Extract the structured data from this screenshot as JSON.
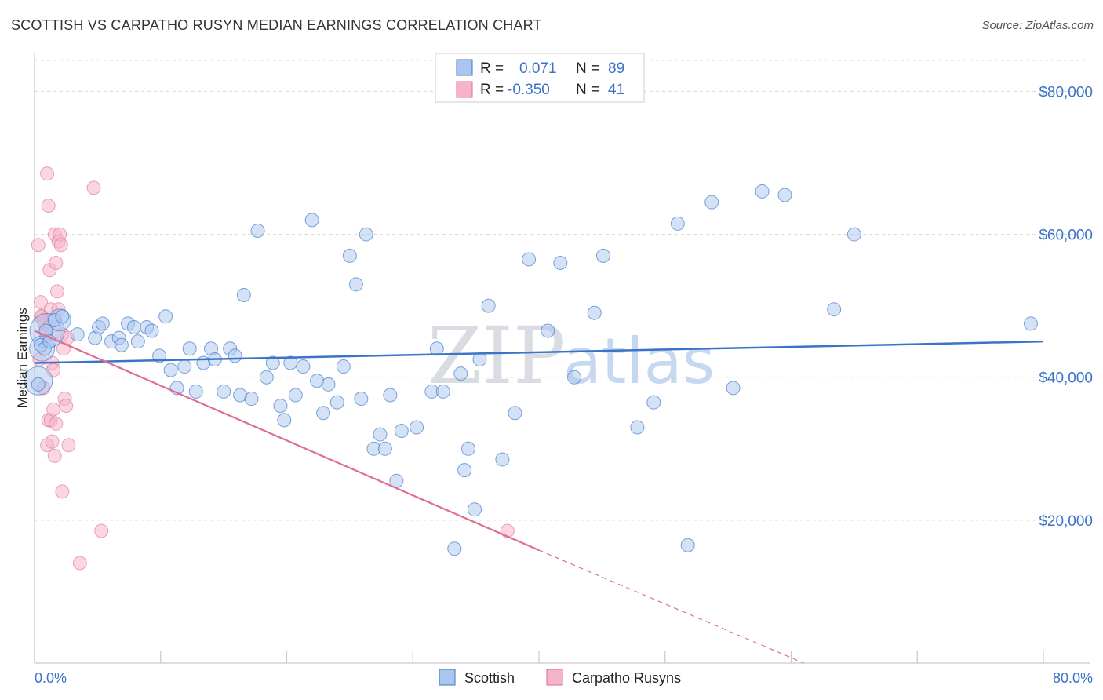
{
  "header": {
    "title": "SCOTTISH VS CARPATHO RUSYN MEDIAN EARNINGS CORRELATION CHART",
    "source": "Source: ZipAtlas.com"
  },
  "colors": {
    "blue": "#3b73c8",
    "blue_fill": "#aac6ee",
    "pink": "#e06b93",
    "pink_fill": "#f5b4c9",
    "grid": "#d8d8d8"
  },
  "legend_top": {
    "rows": [
      {
        "r_label": "R =",
        "r_value": "0.071",
        "n_label": "N =",
        "n_value": "89"
      },
      {
        "r_label": "R =",
        "r_value": "-0.350",
        "n_label": "N =",
        "n_value": "41"
      }
    ]
  },
  "watermark": {
    "zip": "ZIP",
    "atlas": "atlas"
  },
  "chart_data": {
    "type": "scatter",
    "title": "SCOTTISH VS CARPATHO RUSYN MEDIAN EARNINGS CORRELATION CHART",
    "ylabel": "Median Earnings",
    "xlabel": "",
    "xlim": [
      0,
      80
    ],
    "ylim": [
      0,
      84000
    ],
    "x_tick_labels": [
      "0.0%",
      "80.0%"
    ],
    "y_ticks": [
      {
        "value": 20000,
        "label": "$20,000"
      },
      {
        "value": 40000,
        "label": "$40,000"
      },
      {
        "value": 60000,
        "label": "$60,000"
      },
      {
        "value": 80000,
        "label": "$80,000"
      }
    ],
    "series": [
      {
        "name": "Scottish",
        "color": "blue",
        "points": [
          [
            0.3,
            39000
          ],
          [
            0.5,
            44500
          ],
          [
            0.9,
            46500
          ],
          [
            1.6,
            48000
          ],
          [
            2.2,
            48500
          ],
          [
            3.4,
            46000
          ],
          [
            4.8,
            45500
          ],
          [
            5.1,
            47000
          ],
          [
            5.4,
            47500
          ],
          [
            6.1,
            45000
          ],
          [
            6.7,
            45500
          ],
          [
            6.9,
            44500
          ],
          [
            7.4,
            47500
          ],
          [
            7.9,
            47000
          ],
          [
            8.2,
            45000
          ],
          [
            8.9,
            47000
          ],
          [
            9.3,
            46500
          ],
          [
            9.9,
            43000
          ],
          [
            10.4,
            48500
          ],
          [
            10.8,
            41000
          ],
          [
            11.3,
            38500
          ],
          [
            11.9,
            41500
          ],
          [
            12.3,
            44000
          ],
          [
            12.8,
            38000
          ],
          [
            13.4,
            42000
          ],
          [
            14.0,
            44000
          ],
          [
            14.3,
            42500
          ],
          [
            15.0,
            38000
          ],
          [
            15.5,
            44000
          ],
          [
            15.9,
            43000
          ],
          [
            16.3,
            37500
          ],
          [
            16.6,
            51500
          ],
          [
            17.2,
            37000
          ],
          [
            17.7,
            60500
          ],
          [
            18.4,
            40000
          ],
          [
            18.9,
            42000
          ],
          [
            19.5,
            36000
          ],
          [
            19.8,
            34000
          ],
          [
            20.3,
            42000
          ],
          [
            20.7,
            37500
          ],
          [
            21.3,
            41500
          ],
          [
            22.0,
            62000
          ],
          [
            22.4,
            39500
          ],
          [
            22.9,
            35000
          ],
          [
            23.3,
            39000
          ],
          [
            24.0,
            36500
          ],
          [
            24.5,
            41500
          ],
          [
            25.0,
            57000
          ],
          [
            25.5,
            53000
          ],
          [
            25.9,
            37000
          ],
          [
            26.3,
            60000
          ],
          [
            26.9,
            30000
          ],
          [
            27.4,
            32000
          ],
          [
            27.8,
            30000
          ],
          [
            28.2,
            37500
          ],
          [
            28.7,
            25500
          ],
          [
            29.1,
            32500
          ],
          [
            30.3,
            33000
          ],
          [
            31.5,
            38000
          ],
          [
            31.9,
            44000
          ],
          [
            32.4,
            38000
          ],
          [
            33.3,
            16000
          ],
          [
            33.8,
            40500
          ],
          [
            34.1,
            27000
          ],
          [
            34.4,
            30000
          ],
          [
            34.9,
            21500
          ],
          [
            35.3,
            42500
          ],
          [
            36.0,
            50000
          ],
          [
            37.1,
            28500
          ],
          [
            38.1,
            35000
          ],
          [
            39.2,
            56500
          ],
          [
            40.7,
            46500
          ],
          [
            41.7,
            56000
          ],
          [
            42.8,
            40000
          ],
          [
            44.4,
            49000
          ],
          [
            45.1,
            57000
          ],
          [
            47.8,
            33000
          ],
          [
            49.1,
            36500
          ],
          [
            51.0,
            61500
          ],
          [
            51.8,
            16500
          ],
          [
            53.7,
            64500
          ],
          [
            55.4,
            38500
          ],
          [
            57.7,
            66000
          ],
          [
            59.5,
            65500
          ],
          [
            63.4,
            49500
          ],
          [
            65.0,
            60000
          ],
          [
            79.0,
            47500
          ],
          [
            0.8,
            44000
          ],
          [
            1.2,
            45000
          ]
        ],
        "big_points": [
          [
            1.0,
            46500
          ],
          [
            0.3,
            39500
          ],
          [
            0.6,
            44000
          ],
          [
            2.0,
            48000
          ]
        ],
        "trend": {
          "x1": 0,
          "y1": 42000,
          "x2": 80,
          "y2": 45000
        }
      },
      {
        "name": "Carpatho Rusyns",
        "color": "pink",
        "points": [
          [
            0.3,
            58500
          ],
          [
            0.5,
            50500
          ],
          [
            0.6,
            48500
          ],
          [
            0.7,
            48000
          ],
          [
            0.8,
            47500
          ],
          [
            0.9,
            46000
          ],
          [
            1.0,
            68500
          ],
          [
            1.1,
            64000
          ],
          [
            1.2,
            55000
          ],
          [
            1.3,
            49500
          ],
          [
            1.4,
            42000
          ],
          [
            1.5,
            41000
          ],
          [
            1.6,
            60000
          ],
          [
            1.7,
            56000
          ],
          [
            1.8,
            52000
          ],
          [
            1.9,
            59000
          ],
          [
            2.0,
            60000
          ],
          [
            2.1,
            58500
          ],
          [
            2.2,
            46000
          ],
          [
            2.3,
            44000
          ],
          [
            2.4,
            37000
          ],
          [
            2.5,
            36000
          ],
          [
            1.1,
            34000
          ],
          [
            1.3,
            34000
          ],
          [
            1.5,
            35500
          ],
          [
            1.0,
            30500
          ],
          [
            1.4,
            31000
          ],
          [
            1.6,
            29000
          ],
          [
            2.2,
            24000
          ],
          [
            2.7,
            30500
          ],
          [
            3.6,
            14000
          ],
          [
            4.7,
            66500
          ],
          [
            5.3,
            18500
          ],
          [
            0.4,
            42500
          ],
          [
            0.7,
            38500
          ],
          [
            1.2,
            47000
          ],
          [
            1.9,
            49500
          ],
          [
            2.6,
            45500
          ],
          [
            1.7,
            33500
          ],
          [
            0.5,
            48500
          ],
          [
            37.5,
            18500
          ]
        ],
        "trend": {
          "x1": 0,
          "y1": 46500,
          "x2": 40,
          "y2": 15800
        },
        "trend_extension": {
          "x1": 40,
          "y1": 15800,
          "x2": 61,
          "y2": 0
        }
      }
    ],
    "legend": [
      "Scottish",
      "Carpatho Rusyns"
    ]
  }
}
